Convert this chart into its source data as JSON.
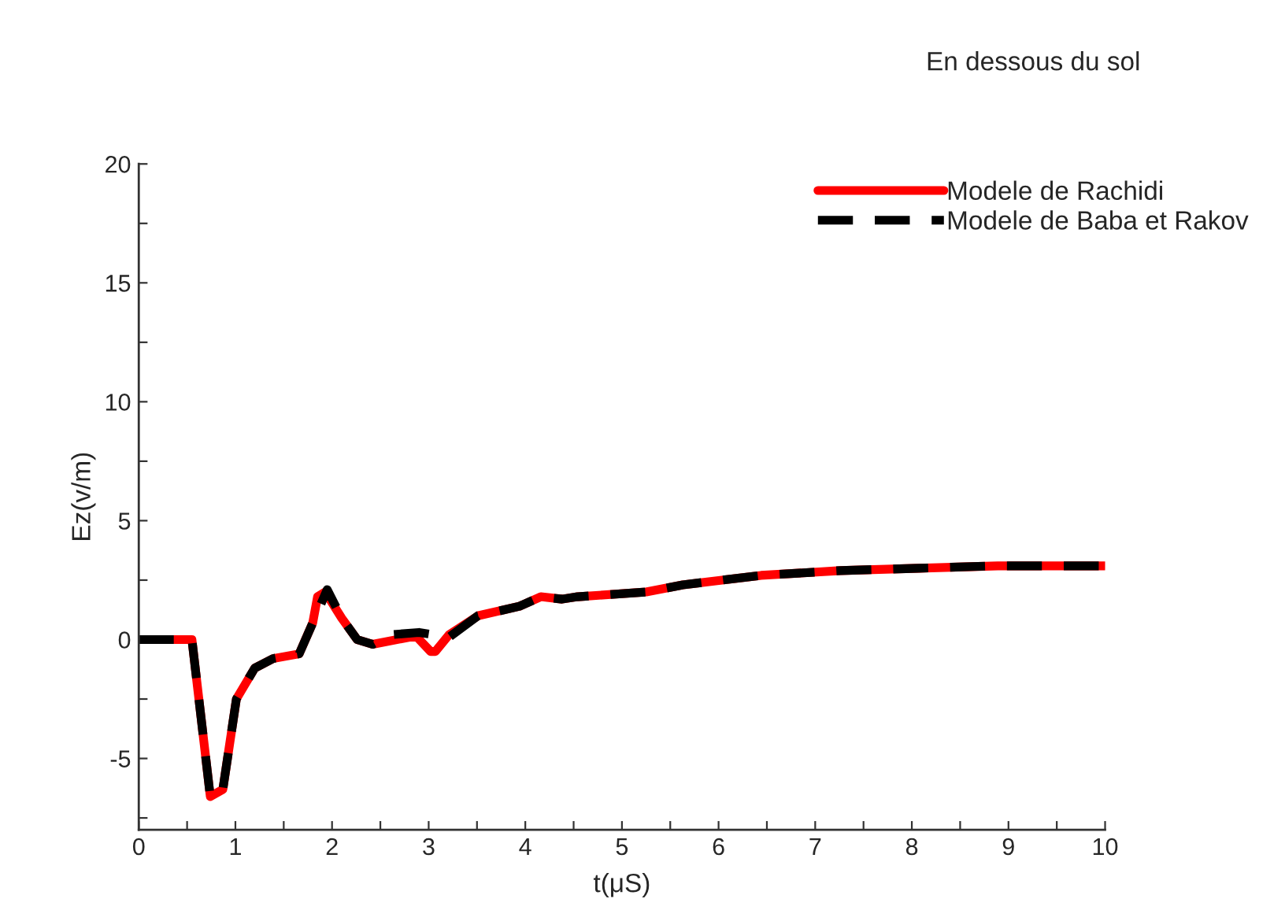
{
  "chart_data": {
    "type": "line",
    "xlabel": "t(μS)",
    "ylabel": "Ez(v/m)",
    "legend_title": "En dessous du sol",
    "legend": "top right",
    "grid": false,
    "xlim": [
      0,
      10
    ],
    "ylim": [
      -8,
      20
    ],
    "xticks": [
      0,
      {
        "value": 0.5,
        "label": null
      },
      1,
      {
        "value": 1.5,
        "label": null
      },
      2,
      {
        "value": 2.5,
        "label": null
      },
      3,
      {
        "value": 3.5,
        "label": null
      },
      4,
      {
        "value": 4.5,
        "label": null
      },
      5,
      {
        "value": 5.5,
        "label": null
      },
      6,
      {
        "value": 6.5,
        "label": null
      },
      7,
      {
        "value": 7.5,
        "label": null
      },
      8,
      {
        "value": 8.5,
        "label": null
      },
      9,
      {
        "value": 9.5,
        "label": null
      },
      10
    ],
    "yticks": [
      {
        "value": -7.5,
        "label": null
      },
      -5,
      {
        "value": -2.5,
        "label": null
      },
      0,
      {
        "value": 2.5,
        "label": null
      },
      5,
      {
        "value": 7.5,
        "label": null
      },
      10,
      {
        "value": 12.5,
        "label": null
      },
      15,
      {
        "value": 17.5,
        "label": null
      },
      20
    ],
    "series": [
      {
        "name": "Modele de Rachidi",
        "color": "#ff0000",
        "line_style": "solid",
        "x": [
          0,
          0.55,
          0.74,
          0.87,
          1.01,
          1.2,
          1.39,
          1.66,
          1.8,
          1.85,
          1.93,
          2.1,
          2.26,
          2.42,
          2.8,
          2.88,
          3.02,
          3.07,
          3.21,
          3.51,
          3.94,
          4.16,
          4.38,
          4.54,
          5.25,
          5.63,
          6.44,
          7.26,
          8.07,
          8.89,
          10
        ],
        "values": [
          0,
          0,
          -6.6,
          -6.3,
          -2.5,
          -1.2,
          -0.8,
          -0.6,
          0.7,
          1.8,
          2.0,
          0.9,
          0.0,
          -0.2,
          0.1,
          0.1,
          -0.5,
          -0.5,
          0.2,
          1.0,
          1.4,
          1.8,
          1.7,
          1.8,
          2.0,
          2.3,
          2.7,
          2.9,
          3.0,
          3.1,
          3.1
        ]
      },
      {
        "name": "Modele de Baba et Rakov",
        "color": "#000000",
        "line_style": "dashed",
        "x": [
          0,
          0.55,
          0.74,
          0.87,
          1.01,
          1.2,
          1.39,
          1.66,
          1.8,
          1.95,
          2.1,
          2.26,
          2.42,
          2.6,
          2.9,
          3.21,
          3.51,
          3.94,
          4.16,
          4.38,
          4.54,
          5.25,
          5.63,
          6.44,
          7.26,
          8.07,
          8.89,
          10
        ],
        "values": [
          0,
          0,
          -6.6,
          -6.3,
          -2.5,
          -1.2,
          -0.8,
          -0.6,
          0.7,
          2.1,
          0.9,
          0.0,
          -0.2,
          0.2,
          0.3,
          0.1,
          1.0,
          1.4,
          1.8,
          1.7,
          1.8,
          2.0,
          2.3,
          2.7,
          2.9,
          3.0,
          3.1,
          3.1
        ]
      }
    ]
  }
}
